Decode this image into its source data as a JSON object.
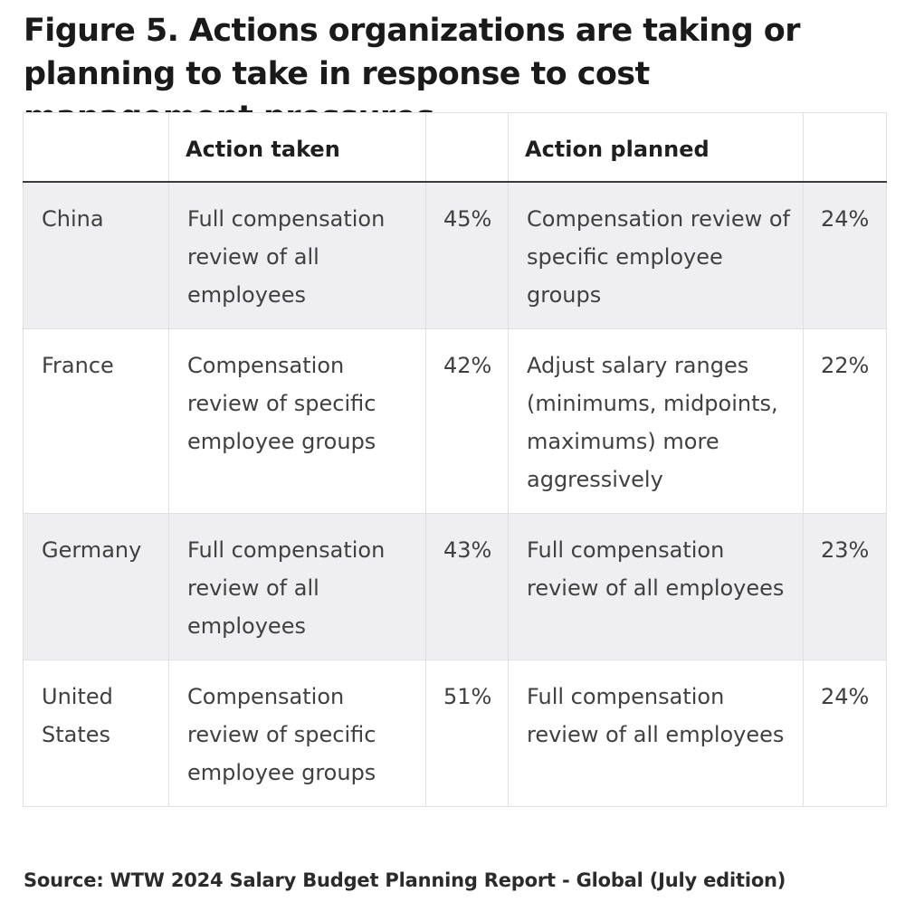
{
  "figure": {
    "title": "Figure 5. Actions organizations are taking or planning to take in response to cost management pressures",
    "source": "Source: WTW 2024 Salary Budget Planning Report - Global (July edition)"
  },
  "table": {
    "headers": {
      "country": "",
      "action_taken": "Action taken",
      "action_taken_pct": "",
      "action_planned": "Action planned",
      "action_planned_pct": ""
    },
    "rows": [
      {
        "country": "China",
        "action_taken": "Full compensation review of all employees",
        "action_taken_pct": "45%",
        "action_planned": "Compensation review of specific employee groups",
        "action_planned_pct": "24%"
      },
      {
        "country": "France",
        "action_taken": "Compensation review of specific employee groups",
        "action_taken_pct": "42%",
        "action_planned": "Adjust salary ranges (minimums, midpoints, maximums) more aggressively",
        "action_planned_pct": "22%"
      },
      {
        "country": "Germany",
        "action_taken": "Full compensation review of all employees",
        "action_taken_pct": "43%",
        "action_planned": "Full compensation review of all employees",
        "action_planned_pct": "23%"
      },
      {
        "country": "United States",
        "action_taken": "Compensation review of specific employee groups",
        "action_taken_pct": "51%",
        "action_planned": "Full compensation review of all employees",
        "action_planned_pct": "24%"
      }
    ]
  },
  "colors": {
    "row_shade": "#efeff2",
    "border": "#e0e0e3",
    "header_rule": "#3a3a3a",
    "text": "#404040",
    "title_text": "#1a1a1a"
  }
}
